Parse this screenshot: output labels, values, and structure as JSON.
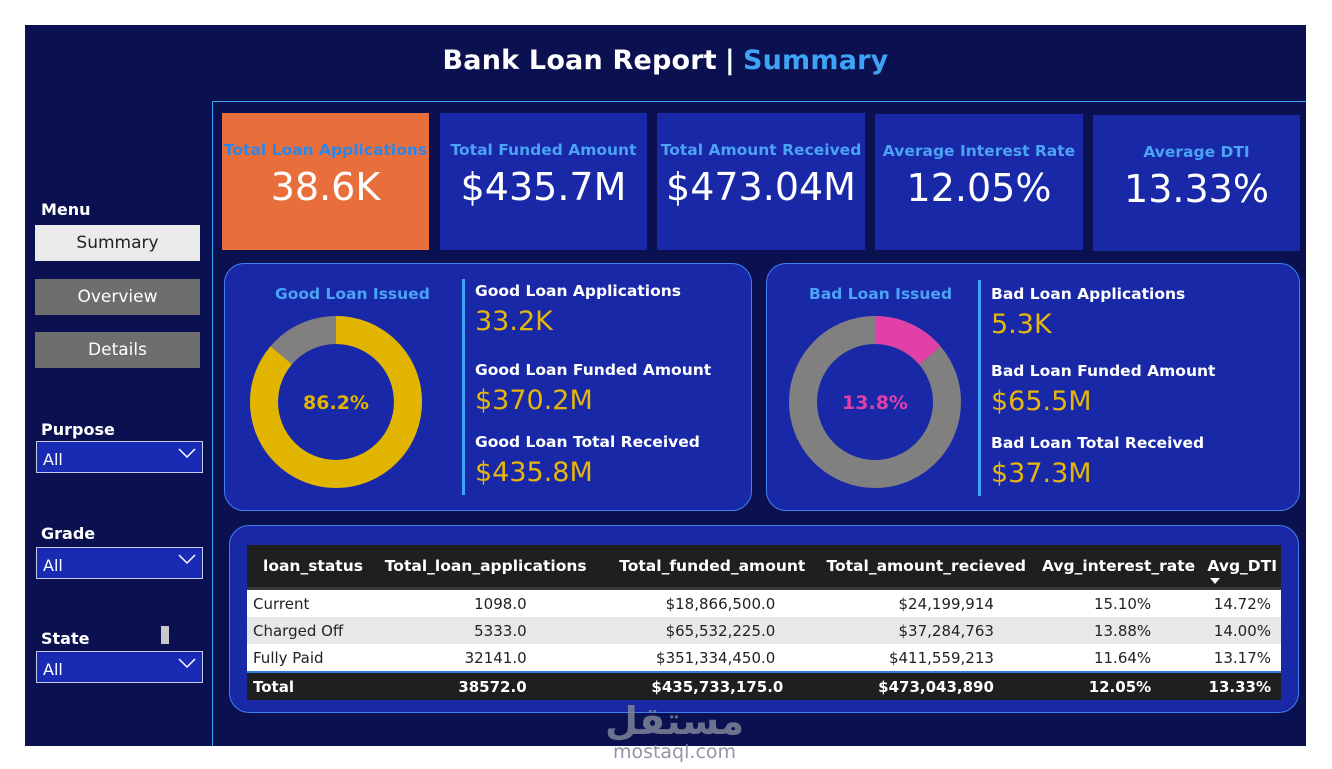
{
  "header": {
    "title_main": "Bank Loan Report",
    "separator": "|",
    "title_accent": "Summary"
  },
  "sidebar": {
    "menu_label": "Menu",
    "nav": [
      {
        "label": "Summary",
        "active": true
      },
      {
        "label": "Overview",
        "active": false
      },
      {
        "label": "Details",
        "active": false
      }
    ],
    "filters": [
      {
        "label": "Purpose",
        "value": "All"
      },
      {
        "label": "Grade",
        "value": "All"
      },
      {
        "label": "State",
        "value": "All"
      }
    ]
  },
  "kpis": [
    {
      "label": "Total Loan Applications",
      "value": "38.6K",
      "color": "#e86f3b"
    },
    {
      "label": "Total Funded Amount",
      "value": "$435.7M"
    },
    {
      "label": "Total Amount Received",
      "value": "$473.04M"
    },
    {
      "label": "Average Interest Rate",
      "value": "12.05%"
    },
    {
      "label": "Average DTI",
      "value": "13.33%"
    }
  ],
  "good_loan": {
    "title": "Good Loan Issued",
    "donut_label": "86.2%",
    "donut_fraction": 0.862,
    "color": "#e1b400",
    "rest_color": "#808080",
    "metrics": [
      {
        "label": "Good Loan Applications",
        "value": "33.2K"
      },
      {
        "label": "Good Loan Funded Amount",
        "value": "$370.2M"
      },
      {
        "label": "Good Loan Total Received",
        "value": "$435.8M"
      }
    ]
  },
  "bad_loan": {
    "title": "Bad Loan Issued",
    "donut_label": "13.8%",
    "donut_fraction": 0.138,
    "color": "#e040a8",
    "rest_color": "#808080",
    "metrics": [
      {
        "label": "Bad Loan Applications",
        "value": "5.3K"
      },
      {
        "label": "Bad Loan Funded Amount",
        "value": "$65.5M"
      },
      {
        "label": "Bad Loan Total Received",
        "value": "$37.3M"
      }
    ]
  },
  "table": {
    "columns": [
      "loan_status",
      "Total_loan_applications",
      "Total_funded_amount",
      "Total_amount_recieved",
      "Avg_interest_rate",
      "Avg_DTI"
    ],
    "rows": [
      [
        "Current",
        "1098.0",
        "$18,866,500.0",
        "$24,199,914",
        "15.10%",
        "14.72%"
      ],
      [
        "Charged Off",
        "5333.0",
        "$65,532,225.0",
        "$37,284,763",
        "13.88%",
        "14.00%"
      ],
      [
        "Fully Paid",
        "32141.0",
        "$351,334,450.0",
        "$411,559,213",
        "11.64%",
        "13.17%"
      ]
    ],
    "total": [
      "Total",
      "38572.0",
      "$435,733,175.0",
      "$473,043,890",
      "12.05%",
      "13.33%"
    ]
  },
  "watermark": {
    "brand": "مستقل",
    "url": "mostaql.com"
  }
}
